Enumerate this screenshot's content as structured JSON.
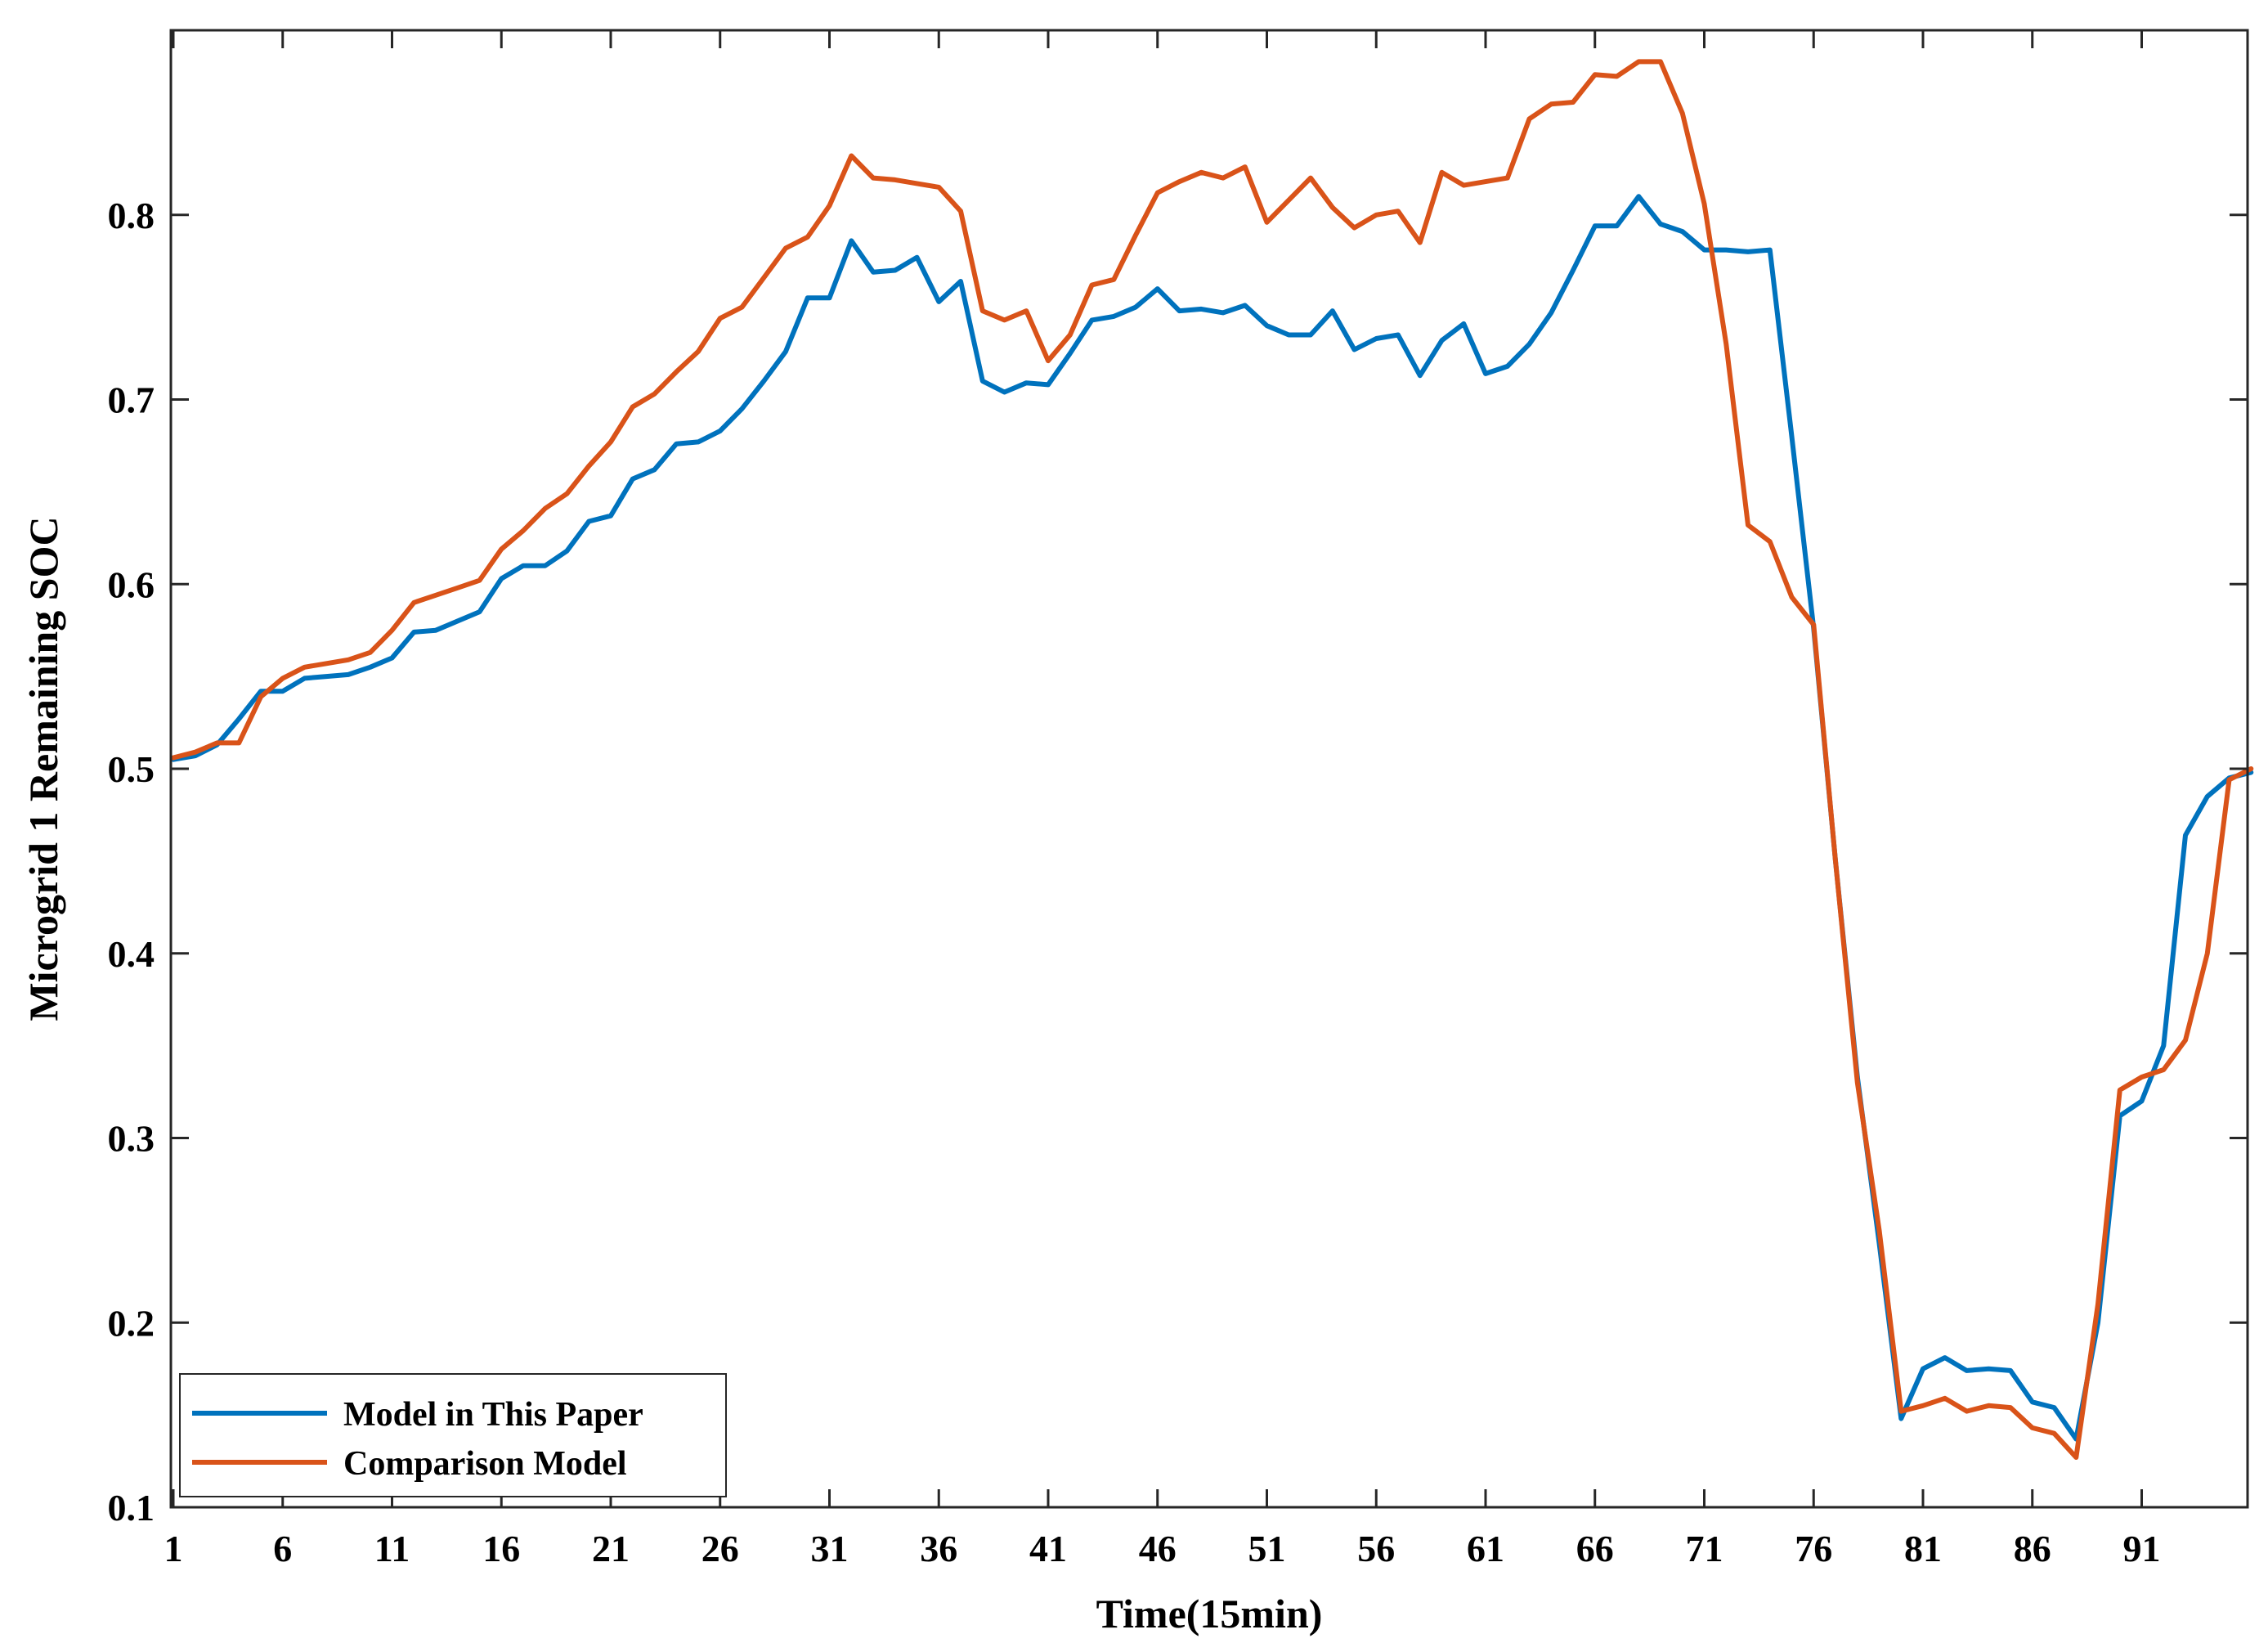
{
  "chart_data": {
    "type": "line",
    "title": "",
    "xlabel": "Time(15min)",
    "ylabel": "Microgrid 1 Remaining SOC",
    "xlim": [
      1,
      96
    ],
    "ylim": [
      0.1,
      0.9
    ],
    "grid": false,
    "legend_position": "bottom-left",
    "x_ticks": [
      1,
      6,
      11,
      16,
      21,
      26,
      31,
      36,
      41,
      46,
      51,
      56,
      61,
      66,
      71,
      76,
      81,
      86,
      91
    ],
    "x_tick_labels": [
      "1",
      "6",
      "11",
      "16",
      "21",
      "26",
      "31",
      "36",
      "41",
      "46",
      "51",
      "56",
      "61",
      "66",
      "71",
      "76",
      "81",
      "86",
      "91"
    ],
    "y_ticks": [
      0.1,
      0.2,
      0.3,
      0.4,
      0.5,
      0.6,
      0.7,
      0.8
    ],
    "y_tick_labels": [
      "0.1",
      "0.2",
      "0.3",
      "0.4",
      "0.5",
      "0.6",
      "0.7",
      "0.8"
    ],
    "x": [
      1,
      2,
      3,
      4,
      5,
      6,
      7,
      8,
      9,
      10,
      11,
      12,
      13,
      14,
      15,
      16,
      17,
      18,
      19,
      20,
      21,
      22,
      23,
      24,
      25,
      26,
      27,
      28,
      29,
      30,
      31,
      32,
      33,
      34,
      35,
      36,
      37,
      38,
      39,
      40,
      41,
      42,
      43,
      44,
      45,
      46,
      47,
      48,
      49,
      50,
      51,
      52,
      53,
      54,
      55,
      56,
      57,
      58,
      59,
      60,
      61,
      62,
      63,
      64,
      65,
      66,
      67,
      68,
      69,
      70,
      71,
      72,
      73,
      74,
      75,
      76,
      77,
      78,
      79,
      80,
      81,
      82,
      83,
      84,
      85,
      86,
      87,
      88,
      89,
      90,
      91,
      92,
      93,
      94,
      95,
      96
    ],
    "series": [
      {
        "name": "Model in This Paper",
        "color": "#0072BD",
        "values": [
          0.505,
          0.507,
          0.513,
          0.527,
          0.542,
          0.542,
          0.549,
          0.55,
          0.551,
          0.555,
          0.56,
          0.574,
          0.575,
          0.58,
          0.585,
          0.603,
          0.61,
          0.61,
          0.618,
          0.634,
          0.637,
          0.657,
          0.662,
          0.676,
          0.677,
          0.683,
          0.695,
          0.71,
          0.726,
          0.755,
          0.755,
          0.786,
          0.769,
          0.77,
          0.777,
          0.753,
          0.764,
          0.71,
          0.704,
          0.709,
          0.708,
          0.725,
          0.743,
          0.745,
          0.75,
          0.76,
          0.748,
          0.749,
          0.747,
          0.751,
          0.74,
          0.735,
          0.735,
          0.748,
          0.727,
          0.733,
          0.735,
          0.713,
          0.732,
          0.741,
          0.714,
          0.718,
          0.73,
          0.747,
          0.77,
          0.794,
          0.794,
          0.81,
          0.795,
          0.791,
          0.781,
          0.781,
          0.78,
          0.781,
          0.68,
          0.576,
          0.45,
          0.333,
          0.243,
          0.148,
          0.175,
          0.181,
          0.174,
          0.175,
          0.174,
          0.157,
          0.154,
          0.137,
          0.2,
          0.312,
          0.32,
          0.35,
          0.464,
          0.485,
          0.495,
          0.498
        ]
      },
      {
        "name": "Comparison Model",
        "color": "#D95319",
        "values": [
          0.506,
          0.509,
          0.514,
          0.514,
          0.539,
          0.549,
          0.555,
          0.557,
          0.559,
          0.563,
          0.575,
          0.59,
          0.594,
          0.598,
          0.602,
          0.619,
          0.629,
          0.641,
          0.649,
          0.664,
          0.677,
          0.696,
          0.703,
          0.715,
          0.726,
          0.744,
          0.75,
          0.766,
          0.782,
          0.788,
          0.805,
          0.832,
          0.82,
          0.819,
          0.817,
          0.815,
          0.802,
          0.748,
          0.743,
          0.748,
          0.721,
          0.735,
          0.762,
          0.765,
          0.789,
          0.812,
          0.818,
          0.823,
          0.82,
          0.826,
          0.796,
          0.808,
          0.82,
          0.804,
          0.793,
          0.8,
          0.802,
          0.785,
          0.823,
          0.816,
          0.818,
          0.82,
          0.852,
          0.86,
          0.861,
          0.876,
          0.875,
          0.883,
          0.883,
          0.855,
          0.806,
          0.73,
          0.632,
          0.623,
          0.593,
          0.578,
          0.45,
          0.33,
          0.25,
          0.152,
          0.155,
          0.159,
          0.152,
          0.155,
          0.154,
          0.143,
          0.14,
          0.127,
          0.21,
          0.326,
          0.333,
          0.337,
          0.353,
          0.4,
          0.494,
          0.5
        ]
      }
    ]
  }
}
